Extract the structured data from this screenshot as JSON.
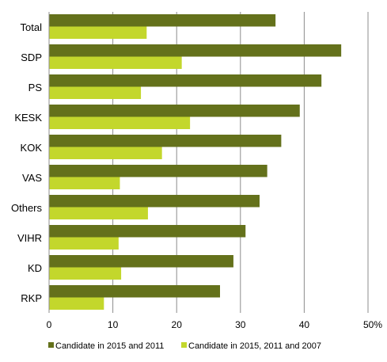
{
  "chart_data": {
    "type": "bar",
    "orientation": "horizontal",
    "categories": [
      "Total",
      "SDP",
      "PS",
      "KESK",
      "KOK",
      "VAS",
      "Others",
      "VIHR",
      "KD",
      "RKP"
    ],
    "series": [
      {
        "name": "Candidate in 2015 and 2011",
        "color": "#64711b",
        "values": [
          35.5,
          45.8,
          42.7,
          39.3,
          36.4,
          34.2,
          33.0,
          30.8,
          28.9,
          26.8
        ]
      },
      {
        "name": "Candidate in 2015, 2011 and 2007",
        "color": "#c3d72c",
        "values": [
          15.3,
          20.8,
          14.4,
          22.1,
          17.7,
          11.1,
          15.5,
          10.9,
          11.3,
          8.6
        ]
      }
    ],
    "xlim": [
      0,
      50
    ],
    "xticks": [
      0,
      10,
      20,
      30,
      40,
      50
    ],
    "xtick_labels": [
      "0",
      "10",
      "20",
      "30",
      "40",
      "50%"
    ],
    "title": "",
    "xlabel": "",
    "ylabel": "",
    "grid": "vertical",
    "legend": "bottom"
  }
}
